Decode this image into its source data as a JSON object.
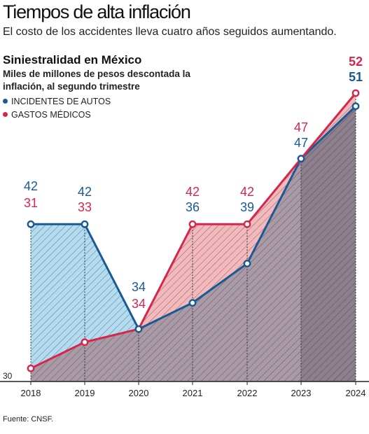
{
  "header": {
    "title": "Tiempos de alta inflación",
    "subtitle": "El costo de los accidentes lleva cuatro años seguidos aumentando."
  },
  "chart_data": {
    "type": "line",
    "title": "Siniestralidad en México",
    "subtitle": "Miles de millones de pesos descontada la inflación, al segundo trimestre",
    "x": [
      "2018",
      "2019",
      "2020",
      "2021",
      "2022",
      "2023",
      "2024"
    ],
    "series": [
      {
        "name": "INCIDENTES DE AUTOS",
        "color": "#1a5a94",
        "values": [
          42,
          42,
          34,
          36,
          39,
          47,
          51
        ]
      },
      {
        "name": "GASTOS MÉDICOS",
        "color": "#d6264b",
        "values": [
          31,
          33,
          34,
          42,
          42,
          47,
          52
        ]
      }
    ],
    "ylim": [
      30,
      52
    ],
    "y_tick_labels": [
      "30"
    ],
    "legend_position": "top-left",
    "grid": false,
    "data_labels": true
  },
  "source": "Fuente: CNSF."
}
